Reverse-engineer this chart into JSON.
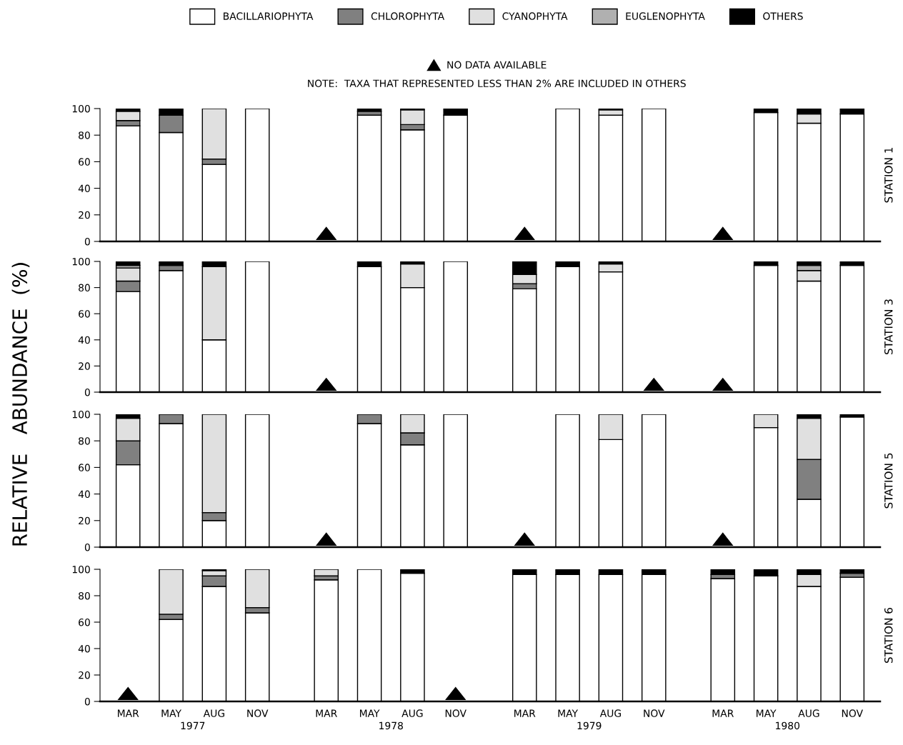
{
  "chart_data": [
    {
      "type": "bar",
      "stacked": true,
      "categories": [
        null,
        null,
        null,
        null,
        null,
        null,
        null,
        null,
        null,
        null,
        null,
        null,
        null,
        null,
        null,
        null
      ],
      "ylim": [
        0,
        100
      ],
      "yticks": [
        0,
        20,
        40,
        60,
        80,
        100
      ],
      "tick_labels": "y",
      "ylabel": "RELATIVE   ABUNDANCE  (%)",
      "y2label": "STATION 1",
      "legend": "top",
      "annotations": [
        "NO DATA AVAILABLE",
        "NOTE:  TAXA THAT REPRESENTED LESS THAN 2% ARE INCLUDED IN OTHERS"
      ],
      "series": [
        {
          "name": "BACILLARIOPHYTA",
          "color": "#ffffff",
          "values": [
            87,
            82,
            58,
            100,
            null,
            95,
            84,
            95,
            null,
            100,
            95,
            100,
            null,
            97,
            89,
            96
          ]
        },
        {
          "name": "CHLOROPHYTA",
          "color": "#808080",
          "values": [
            4,
            13,
            4,
            0,
            null,
            3,
            4,
            0,
            null,
            0,
            0,
            0,
            null,
            0,
            0,
            0
          ]
        },
        {
          "name": "CYANOPHYTA",
          "color": "#e0e0e0",
          "values": [
            7,
            0,
            38,
            0,
            null,
            0,
            11,
            0,
            null,
            0,
            4,
            0,
            null,
            0,
            7,
            0
          ]
        },
        {
          "name": "EUGLENOPHYTA",
          "color": "#b0b0b0",
          "values": [
            0,
            0,
            0,
            0,
            null,
            0,
            0,
            0,
            null,
            0,
            0,
            0,
            null,
            0,
            0,
            0
          ]
        },
        {
          "name": "OTHERS",
          "color": "#000000",
          "values": [
            2,
            5,
            0,
            0,
            null,
            2,
            1,
            5,
            null,
            0,
            1,
            0,
            null,
            3,
            4,
            4
          ]
        }
      ]
    },
    {
      "type": "bar",
      "stacked": true,
      "categories": [
        null,
        null,
        null,
        null,
        null,
        null,
        null,
        null,
        null,
        null,
        null,
        null,
        null,
        null,
        null,
        null
      ],
      "ylim": [
        0,
        100
      ],
      "yticks": [
        0,
        20,
        40,
        60,
        80,
        100
      ],
      "tick_labels": "y",
      "y2label": "STATION 3",
      "series": [
        {
          "color": "#ffffff",
          "values": [
            77,
            93,
            40,
            100,
            null,
            96,
            80,
            100,
            79,
            96,
            92,
            null,
            null,
            97,
            85,
            97
          ]
        },
        {
          "color": "#808080",
          "values": [
            8,
            4,
            0,
            0,
            null,
            0,
            0,
            0,
            4,
            0,
            0,
            null,
            null,
            0,
            0,
            0
          ]
        },
        {
          "color": "#e0e0e0",
          "values": [
            10,
            0,
            56,
            0,
            null,
            0,
            18,
            0,
            7,
            0,
            6,
            null,
            null,
            0,
            8,
            0
          ]
        },
        {
          "color": "#b0b0b0",
          "values": [
            2,
            0,
            0,
            0,
            null,
            0,
            0,
            0,
            0,
            0,
            0,
            null,
            null,
            0,
            4,
            0
          ]
        },
        {
          "color": "#000000",
          "values": [
            3,
            3,
            4,
            0,
            null,
            4,
            2,
            0,
            10,
            4,
            2,
            null,
            null,
            3,
            3,
            3
          ]
        }
      ]
    },
    {
      "type": "bar",
      "stacked": true,
      "categories": [
        null,
        null,
        null,
        null,
        null,
        null,
        null,
        null,
        null,
        null,
        null,
        null,
        null,
        null,
        null,
        null
      ],
      "ylim": [
        0,
        100
      ],
      "yticks": [
        0,
        20,
        40,
        60,
        80,
        100
      ],
      "tick_labels": "y",
      "y2label": "STATION 5",
      "series": [
        {
          "color": "#ffffff",
          "values": [
            62,
            93,
            20,
            100,
            null,
            93,
            77,
            100,
            null,
            100,
            81,
            100,
            null,
            90,
            36,
            98
          ]
        },
        {
          "color": "#808080",
          "values": [
            18,
            7,
            6,
            0,
            null,
            7,
            9,
            0,
            null,
            0,
            0,
            0,
            null,
            0,
            30,
            0
          ]
        },
        {
          "color": "#e0e0e0",
          "values": [
            17,
            0,
            74,
            0,
            null,
            0,
            14,
            0,
            null,
            0,
            19,
            0,
            null,
            10,
            31,
            0
          ]
        },
        {
          "color": "#b0b0b0",
          "values": [
            0,
            0,
            0,
            0,
            null,
            0,
            0,
            0,
            null,
            0,
            0,
            0,
            null,
            0,
            0,
            0
          ]
        },
        {
          "color": "#000000",
          "values": [
            3,
            0,
            0,
            0,
            null,
            0,
            0,
            0,
            null,
            0,
            0,
            0,
            null,
            0,
            3,
            2
          ]
        }
      ]
    },
    {
      "type": "bar",
      "stacked": true,
      "categories": [
        "MAR",
        "MAY",
        "AUG",
        "NOV",
        "MAR",
        "MAY",
        "AUG",
        "NOV",
        "MAR",
        "MAY",
        "AUG",
        "NOV",
        "MAR",
        "MAY",
        "AUG",
        "NOV"
      ],
      "ylim": [
        0,
        100
      ],
      "yticks": [
        0,
        20,
        40,
        60,
        80,
        100
      ],
      "y2label": "STATION 6",
      "annotations": [
        "1977",
        "1978",
        "1979",
        "1980"
      ],
      "series": [
        {
          "color": "#ffffff",
          "values": [
            null,
            62,
            87,
            67,
            92,
            100,
            97,
            null,
            96,
            96,
            96,
            96,
            93,
            95,
            87,
            94
          ]
        },
        {
          "color": "#808080",
          "values": [
            null,
            4,
            8,
            4,
            3,
            0,
            0,
            null,
            0,
            0,
            0,
            0,
            3,
            0,
            0,
            3
          ]
        },
        {
          "color": "#e0e0e0",
          "values": [
            null,
            34,
            4,
            29,
            5,
            0,
            0,
            null,
            0,
            0,
            0,
            0,
            0,
            0,
            9,
            0
          ]
        },
        {
          "color": "#b0b0b0",
          "values": [
            null,
            0,
            0,
            0,
            0,
            0,
            0,
            null,
            0,
            0,
            0,
            0,
            0,
            0,
            0,
            0
          ]
        },
        {
          "color": "#000000",
          "values": [
            null,
            0,
            1,
            0,
            0,
            0,
            3,
            null,
            4,
            4,
            4,
            4,
            4,
            5,
            4,
            3
          ]
        }
      ]
    }
  ]
}
